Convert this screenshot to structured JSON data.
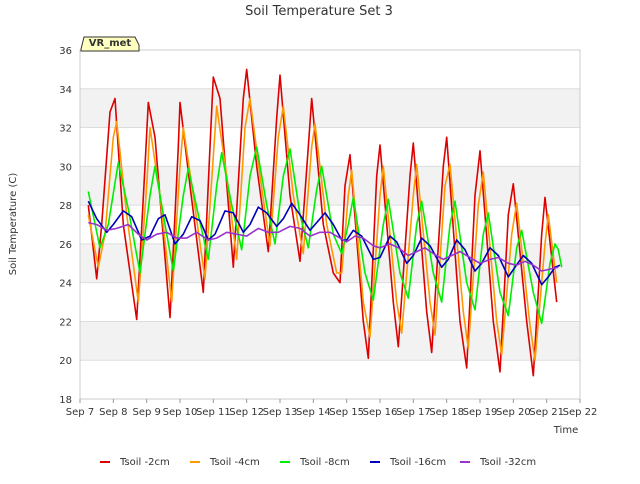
{
  "chart_data": {
    "type": "line",
    "title": "Soil Temperature Set 3",
    "xlabel": "Time",
    "ylabel": "Soil Temperature (C)",
    "badge": "VR_met",
    "ylim": [
      18,
      36
    ],
    "yticks": [
      18,
      20,
      22,
      24,
      26,
      28,
      30,
      32,
      34,
      36
    ],
    "xlim": [
      7,
      22
    ],
    "xticks": [
      {
        "v": 7,
        "label": "Sep 7"
      },
      {
        "v": 8,
        "label": "Sep 8"
      },
      {
        "v": 9,
        "label": "Sep 9"
      },
      {
        "v": 10,
        "label": "Sep 10"
      },
      {
        "v": 11,
        "label": "Sep 11"
      },
      {
        "v": 12,
        "label": "Sep 12"
      },
      {
        "v": 13,
        "label": "Sep 13"
      },
      {
        "v": 14,
        "label": "Sep 14"
      },
      {
        "v": 15,
        "label": "Sep 15"
      },
      {
        "v": 16,
        "label": "Sep 16"
      },
      {
        "v": 17,
        "label": "Sep 17"
      },
      {
        "v": 18,
        "label": "Sep 18"
      },
      {
        "v": 19,
        "label": "Sep 19"
      },
      {
        "v": 20,
        "label": "Sep 20"
      },
      {
        "v": 21,
        "label": "Sep 21"
      },
      {
        "v": 22,
        "label": "Sep 22"
      }
    ],
    "grid": true,
    "legend": "bottom",
    "series": [
      {
        "name": "Tsoil -2cm",
        "color": "#dd0000",
        "points": [
          [
            7.25,
            28.0
          ],
          [
            7.5,
            24.2
          ],
          [
            7.65,
            27.0
          ],
          [
            7.9,
            32.8
          ],
          [
            8.05,
            33.5
          ],
          [
            8.3,
            27.0
          ],
          [
            8.7,
            22.1
          ],
          [
            8.95,
            30.0
          ],
          [
            9.05,
            33.3
          ],
          [
            9.25,
            31.5
          ],
          [
            9.7,
            22.2
          ],
          [
            9.95,
            31.0
          ],
          [
            10.0,
            33.3
          ],
          [
            10.3,
            29.0
          ],
          [
            10.7,
            23.5
          ],
          [
            10.9,
            31.0
          ],
          [
            11.0,
            34.6
          ],
          [
            11.2,
            33.5
          ],
          [
            11.6,
            24.8
          ],
          [
            11.9,
            33.5
          ],
          [
            12.0,
            35.0
          ],
          [
            12.3,
            30.0
          ],
          [
            12.65,
            25.6
          ],
          [
            12.9,
            32.5
          ],
          [
            13.0,
            34.7
          ],
          [
            13.3,
            28.5
          ],
          [
            13.6,
            25.1
          ],
          [
            13.85,
            31.0
          ],
          [
            13.95,
            33.5
          ],
          [
            14.3,
            27.0
          ],
          [
            14.6,
            24.5
          ],
          [
            14.8,
            24.0
          ],
          [
            14.95,
            29.0
          ],
          [
            15.1,
            30.6
          ],
          [
            15.5,
            22.0
          ],
          [
            15.65,
            20.1
          ],
          [
            15.9,
            29.5
          ],
          [
            16.0,
            31.1
          ],
          [
            16.4,
            23.0
          ],
          [
            16.55,
            20.7
          ],
          [
            16.9,
            29.5
          ],
          [
            17.0,
            31.2
          ],
          [
            17.4,
            22.5
          ],
          [
            17.55,
            20.4
          ],
          [
            17.9,
            30.0
          ],
          [
            18.0,
            31.5
          ],
          [
            18.4,
            22.0
          ],
          [
            18.6,
            19.6
          ],
          [
            18.85,
            28.5
          ],
          [
            19.0,
            30.8
          ],
          [
            19.4,
            22.0
          ],
          [
            19.6,
            19.4
          ],
          [
            19.85,
            27.5
          ],
          [
            20.0,
            29.1
          ],
          [
            20.4,
            22.0
          ],
          [
            20.6,
            19.2
          ],
          [
            20.85,
            26.5
          ],
          [
            20.95,
            28.4
          ],
          [
            21.3,
            23.0
          ]
        ]
      },
      {
        "name": "Tsoil -4cm",
        "color": "#ff9900",
        "points": [
          [
            7.25,
            27.5
          ],
          [
            7.55,
            24.8
          ],
          [
            7.75,
            26.5
          ],
          [
            8.0,
            31.5
          ],
          [
            8.1,
            32.3
          ],
          [
            8.4,
            27.5
          ],
          [
            8.75,
            23.0
          ],
          [
            9.0,
            29.0
          ],
          [
            9.1,
            32.0
          ],
          [
            9.4,
            28.5
          ],
          [
            9.75,
            23.0
          ],
          [
            10.0,
            30.0
          ],
          [
            10.1,
            32.0
          ],
          [
            10.4,
            28.5
          ],
          [
            10.75,
            24.2
          ],
          [
            11.0,
            30.5
          ],
          [
            11.1,
            33.1
          ],
          [
            11.4,
            29.5
          ],
          [
            11.7,
            25.2
          ],
          [
            11.95,
            32.0
          ],
          [
            12.1,
            33.5
          ],
          [
            12.4,
            29.5
          ],
          [
            12.7,
            25.9
          ],
          [
            12.95,
            31.5
          ],
          [
            13.1,
            33.1
          ],
          [
            13.4,
            28.5
          ],
          [
            13.7,
            25.5
          ],
          [
            13.95,
            31.0
          ],
          [
            14.05,
            32.2
          ],
          [
            14.4,
            27.0
          ],
          [
            14.7,
            24.5
          ],
          [
            14.85,
            24.5
          ],
          [
            15.05,
            28.5
          ],
          [
            15.15,
            29.8
          ],
          [
            15.5,
            23.0
          ],
          [
            15.7,
            21.2
          ],
          [
            16.0,
            28.5
          ],
          [
            16.1,
            30.0
          ],
          [
            16.5,
            23.0
          ],
          [
            16.65,
            21.4
          ],
          [
            17.0,
            28.5
          ],
          [
            17.1,
            30.1
          ],
          [
            17.5,
            23.0
          ],
          [
            17.65,
            21.3
          ],
          [
            17.95,
            29.0
          ],
          [
            18.1,
            30.1
          ],
          [
            18.5,
            22.5
          ],
          [
            18.65,
            20.6
          ],
          [
            18.95,
            28.0
          ],
          [
            19.1,
            29.7
          ],
          [
            19.5,
            22.0
          ],
          [
            19.65,
            20.3
          ],
          [
            19.95,
            26.5
          ],
          [
            20.1,
            28.1
          ],
          [
            20.5,
            21.8
          ],
          [
            20.65,
            20.0
          ],
          [
            20.95,
            26.0
          ],
          [
            21.05,
            27.5
          ],
          [
            21.3,
            24.0
          ]
        ]
      },
      {
        "name": "Tsoil -8cm",
        "color": "#00ee00",
        "points": [
          [
            7.25,
            28.7
          ],
          [
            7.6,
            25.8
          ],
          [
            7.85,
            27.0
          ],
          [
            8.15,
            30.2
          ],
          [
            8.45,
            27.8
          ],
          [
            8.8,
            24.5
          ],
          [
            9.1,
            28.5
          ],
          [
            9.25,
            30.0
          ],
          [
            9.55,
            27.0
          ],
          [
            9.8,
            24.6
          ],
          [
            10.1,
            28.5
          ],
          [
            10.25,
            29.9
          ],
          [
            10.55,
            27.5
          ],
          [
            10.85,
            25.2
          ],
          [
            11.1,
            29.0
          ],
          [
            11.25,
            30.7
          ],
          [
            11.55,
            28.0
          ],
          [
            11.85,
            25.7
          ],
          [
            12.1,
            29.5
          ],
          [
            12.3,
            31.0
          ],
          [
            12.6,
            28.0
          ],
          [
            12.85,
            26.0
          ],
          [
            13.1,
            29.5
          ],
          [
            13.3,
            30.9
          ],
          [
            13.6,
            27.5
          ],
          [
            13.85,
            25.8
          ],
          [
            14.1,
            28.8
          ],
          [
            14.25,
            30.0
          ],
          [
            14.6,
            26.5
          ],
          [
            14.85,
            25.5
          ],
          [
            15.05,
            27.0
          ],
          [
            15.2,
            28.4
          ],
          [
            15.55,
            24.5
          ],
          [
            15.8,
            23.1
          ],
          [
            16.1,
            27.0
          ],
          [
            16.25,
            28.3
          ],
          [
            16.6,
            24.5
          ],
          [
            16.85,
            23.2
          ],
          [
            17.1,
            27.0
          ],
          [
            17.25,
            28.2
          ],
          [
            17.6,
            24.5
          ],
          [
            17.85,
            23.0
          ],
          [
            18.1,
            27.0
          ],
          [
            18.25,
            28.2
          ],
          [
            18.6,
            24.0
          ],
          [
            18.85,
            22.6
          ],
          [
            19.1,
            26.5
          ],
          [
            19.25,
            27.6
          ],
          [
            19.6,
            23.5
          ],
          [
            19.85,
            22.3
          ],
          [
            20.1,
            25.8
          ],
          [
            20.25,
            26.7
          ],
          [
            20.6,
            23.5
          ],
          [
            20.85,
            21.9
          ],
          [
            21.1,
            25.0
          ],
          [
            21.25,
            26.0
          ],
          [
            21.35,
            25.7
          ],
          [
            21.45,
            24.8
          ]
        ]
      },
      {
        "name": "Tsoil -16cm",
        "color": "#0000bb",
        "points": [
          [
            7.25,
            28.2
          ],
          [
            7.5,
            27.3
          ],
          [
            7.8,
            26.6
          ],
          [
            8.0,
            27.0
          ],
          [
            8.3,
            27.7
          ],
          [
            8.55,
            27.4
          ],
          [
            8.85,
            26.2
          ],
          [
            9.1,
            26.4
          ],
          [
            9.35,
            27.3
          ],
          [
            9.55,
            27.5
          ],
          [
            9.85,
            26.0
          ],
          [
            10.1,
            26.5
          ],
          [
            10.35,
            27.4
          ],
          [
            10.6,
            27.2
          ],
          [
            10.85,
            26.2
          ],
          [
            11.05,
            26.5
          ],
          [
            11.35,
            27.7
          ],
          [
            11.6,
            27.6
          ],
          [
            11.9,
            26.6
          ],
          [
            12.1,
            27.0
          ],
          [
            12.35,
            27.9
          ],
          [
            12.6,
            27.6
          ],
          [
            12.9,
            26.9
          ],
          [
            13.1,
            27.3
          ],
          [
            13.35,
            28.1
          ],
          [
            13.6,
            27.5
          ],
          [
            13.9,
            26.7
          ],
          [
            14.1,
            27.1
          ],
          [
            14.35,
            27.6
          ],
          [
            14.6,
            27.0
          ],
          [
            14.85,
            26.2
          ],
          [
            15.0,
            26.2
          ],
          [
            15.2,
            26.7
          ],
          [
            15.45,
            26.4
          ],
          [
            15.8,
            25.2
          ],
          [
            16.0,
            25.3
          ],
          [
            16.3,
            26.4
          ],
          [
            16.5,
            26.1
          ],
          [
            16.8,
            25.0
          ],
          [
            17.0,
            25.4
          ],
          [
            17.25,
            26.3
          ],
          [
            17.5,
            25.9
          ],
          [
            17.85,
            24.8
          ],
          [
            18.05,
            25.2
          ],
          [
            18.3,
            26.2
          ],
          [
            18.55,
            25.7
          ],
          [
            18.85,
            24.6
          ],
          [
            19.05,
            25.0
          ],
          [
            19.3,
            25.8
          ],
          [
            19.55,
            25.4
          ],
          [
            19.85,
            24.3
          ],
          [
            20.05,
            24.8
          ],
          [
            20.3,
            25.4
          ],
          [
            20.55,
            25.0
          ],
          [
            20.85,
            23.9
          ],
          [
            21.05,
            24.3
          ],
          [
            21.25,
            24.8
          ],
          [
            21.4,
            24.9
          ]
        ]
      },
      {
        "name": "Tsoil -32cm",
        "color": "#9933cc",
        "points": [
          [
            7.25,
            27.1
          ],
          [
            7.5,
            27.0
          ],
          [
            7.8,
            26.7
          ],
          [
            8.1,
            26.8
          ],
          [
            8.45,
            27.0
          ],
          [
            8.75,
            26.5
          ],
          [
            9.0,
            26.2
          ],
          [
            9.3,
            26.5
          ],
          [
            9.6,
            26.6
          ],
          [
            9.9,
            26.3
          ],
          [
            10.2,
            26.3
          ],
          [
            10.5,
            26.6
          ],
          [
            10.85,
            26.2
          ],
          [
            11.1,
            26.3
          ],
          [
            11.4,
            26.6
          ],
          [
            11.7,
            26.5
          ],
          [
            12.0,
            26.4
          ],
          [
            12.35,
            26.8
          ],
          [
            12.65,
            26.6
          ],
          [
            12.95,
            26.6
          ],
          [
            13.3,
            26.9
          ],
          [
            13.6,
            26.8
          ],
          [
            13.9,
            26.4
          ],
          [
            14.2,
            26.6
          ],
          [
            14.5,
            26.6
          ],
          [
            14.8,
            26.3
          ],
          [
            15.0,
            26.1
          ],
          [
            15.25,
            26.4
          ],
          [
            15.5,
            26.3
          ],
          [
            15.8,
            25.9
          ],
          [
            16.0,
            25.8
          ],
          [
            16.3,
            26.0
          ],
          [
            16.55,
            25.8
          ],
          [
            16.85,
            25.4
          ],
          [
            17.1,
            25.6
          ],
          [
            17.35,
            25.8
          ],
          [
            17.6,
            25.5
          ],
          [
            17.9,
            25.2
          ],
          [
            18.15,
            25.4
          ],
          [
            18.4,
            25.6
          ],
          [
            18.7,
            25.3
          ],
          [
            19.0,
            25.0
          ],
          [
            19.3,
            25.2
          ],
          [
            19.55,
            25.3
          ],
          [
            19.85,
            25.0
          ],
          [
            20.1,
            24.9
          ],
          [
            20.35,
            25.1
          ],
          [
            20.6,
            24.9
          ],
          [
            20.85,
            24.6
          ],
          [
            21.1,
            24.7
          ],
          [
            21.35,
            24.8
          ]
        ]
      }
    ]
  }
}
